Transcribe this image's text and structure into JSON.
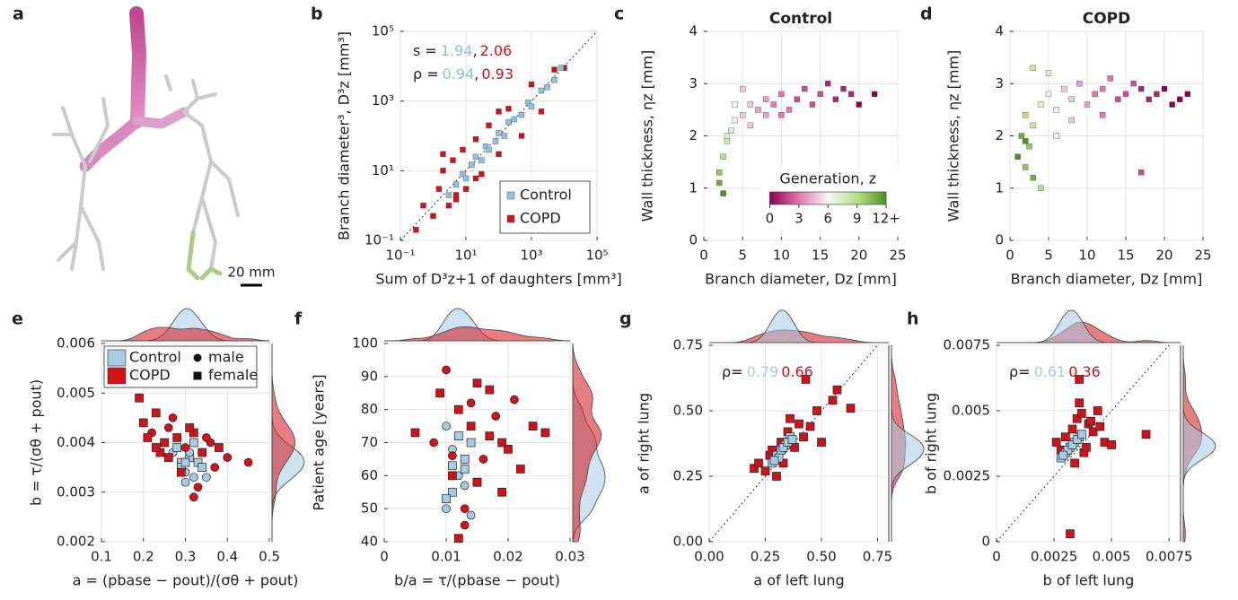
{
  "chart_data": [
    {
      "panel": "a",
      "type": "image",
      "scale_label": "20 mm"
    },
    {
      "panel": "b",
      "type": "scatter",
      "log": true,
      "grid": true,
      "diagonal": true,
      "legend": "lower right",
      "xlabel": "Sum of D³z+1 of daughters [mm³]",
      "ylabel": "Branch diameter³, D³z [mm³]",
      "xlim": [
        0.1,
        100000
      ],
      "ylim": [
        0.1,
        100000
      ],
      "xticks": [
        {
          "value": 0.1,
          "label": "10⁻¹"
        },
        {
          "value": 10,
          "label": "10¹"
        },
        {
          "value": 1000,
          "label": "10³"
        },
        {
          "value": 100000,
          "label": "10⁵"
        }
      ],
      "yticks": [
        {
          "value": 0.1,
          "label": "10⁻¹"
        },
        {
          "value": 10,
          "label": "10¹"
        },
        {
          "value": 1000,
          "label": "10³"
        },
        {
          "value": 100000,
          "label": "10⁵"
        }
      ],
      "stat_separator": ",",
      "stats": [
        {
          "label": "s =",
          "values": [
            "1.94",
            "2.06"
          ]
        },
        {
          "label": "ρ =",
          "values": [
            "0.94",
            "0.93"
          ]
        }
      ],
      "series": [
        {
          "name": "COPD",
          "color": "#d0121b",
          "x": [
            0.5,
            1,
            1.5,
            2,
            3,
            4,
            5,
            8,
            10,
            20,
            30,
            50,
            100,
            200,
            500,
            1000,
            2000,
            5000,
            10000,
            0.3,
            2,
            5,
            20,
            100
          ],
          "values": [
            1,
            0.5,
            3,
            10,
            1,
            20,
            2,
            40,
            3,
            80,
            8,
            200,
            30,
            600,
            100,
            3000,
            500,
            8000,
            9000,
            0.2,
            30,
            1.5,
            6,
            500
          ]
        },
        {
          "name": "Control",
          "color": "#8fc0de",
          "x": [
            3,
            5,
            8,
            10,
            15,
            20,
            30,
            40,
            50,
            80,
            100,
            150,
            200,
            300,
            500,
            800,
            1000,
            2000,
            3000,
            5000,
            8000
          ],
          "values": [
            2,
            4,
            8,
            6,
            15,
            25,
            20,
            50,
            40,
            70,
            120,
            100,
            250,
            300,
            400,
            900,
            700,
            2000,
            2500,
            4000,
            9000
          ]
        }
      ]
    },
    {
      "panel": "c",
      "type": "scatter",
      "title": "Control",
      "grid": true,
      "xlabel": "Branch diameter, Dz [mm]",
      "ylabel": "Wall thickness, ηz [mm]",
      "xlim": [
        0,
        25
      ],
      "ylim": [
        0,
        4
      ],
      "xticks": [
        0,
        5,
        10,
        15,
        20,
        25
      ],
      "yticks": [
        0,
        1,
        2,
        3,
        4
      ],
      "colorbar": {
        "title": "Generation, z",
        "lim": [
          0,
          12
        ],
        "ticks": [
          0,
          3,
          6,
          9,
          {
            "value": 12,
            "label": "12+"
          }
        ]
      },
      "series": [
        {
          "x": [
            2,
            2.5,
            3,
            2,
            3.5,
            4,
            5,
            6,
            7,
            8,
            9,
            10,
            11,
            12,
            13,
            14,
            15,
            16,
            17,
            18,
            19,
            20,
            22,
            3,
            4,
            6,
            8,
            2.5,
            5,
            10
          ],
          "values": [
            1.3,
            1.6,
            1.9,
            1.1,
            2.1,
            2.3,
            2.4,
            2.6,
            2.5,
            2.7,
            2.6,
            2.8,
            2.5,
            2.7,
            2.9,
            2.6,
            2.8,
            3.0,
            2.7,
            2.9,
            2.8,
            2.6,
            2.8,
            2.0,
            2.6,
            2.2,
            2.4,
            0.9,
            2.9,
            2.4
          ],
          "generation": [
            10,
            9,
            8,
            11,
            7,
            6,
            5,
            5,
            4,
            4,
            3,
            3,
            3,
            2,
            2,
            2,
            2,
            1,
            1,
            1,
            1,
            0,
            0,
            7,
            6,
            5,
            4,
            12,
            5,
            3
          ]
        }
      ]
    },
    {
      "panel": "d",
      "type": "scatter",
      "title": "COPD",
      "grid": true,
      "xlabel": "Branch diameter, Dz [mm]",
      "ylabel": "Wall thickness, ηz [mm]",
      "xlim": [
        0,
        25
      ],
      "ylim": [
        0,
        4
      ],
      "xticks": [
        0,
        5,
        10,
        15,
        20,
        25
      ],
      "yticks": [
        0,
        1,
        2,
        3,
        4
      ],
      "series": [
        {
          "x": [
            1,
            1.5,
            2,
            2,
            2.5,
            3,
            3,
            4,
            5,
            6,
            7,
            8,
            9,
            10,
            11,
            12,
            13,
            14,
            15,
            16,
            17,
            18,
            19,
            20,
            21,
            22,
            23,
            3,
            5,
            8,
            12,
            17,
            4,
            6,
            2
          ],
          "values": [
            1.6,
            2.0,
            1.4,
            2.4,
            1.8,
            2.2,
            1.2,
            2.6,
            2.8,
            2.5,
            2.9,
            2.7,
            3.0,
            2.6,
            2.8,
            2.9,
            3.1,
            2.7,
            2.8,
            3.0,
            2.9,
            2.7,
            2.8,
            2.9,
            2.6,
            2.7,
            2.8,
            3.3,
            3.2,
            2.3,
            2.4,
            1.3,
            1.0,
            2.0,
            1.9
          ],
          "generation": [
            12,
            11,
            10,
            9,
            10,
            8,
            11,
            7,
            6,
            6,
            5,
            5,
            4,
            4,
            3,
            3,
            3,
            2,
            2,
            2,
            1,
            1,
            1,
            0,
            0,
            0,
            0,
            8,
            7,
            5,
            3,
            2,
            9,
            6,
            12
          ]
        }
      ]
    },
    {
      "panel": "e",
      "type": "scatter",
      "grid": true,
      "marginals": true,
      "legend": "upper left",
      "xlabel": "a = (pbase − pout)/(σθ + pout)",
      "ylabel": "b = τ/(σθ + pout)",
      "xlim": [
        0.1,
        0.5
      ],
      "ylim": [
        0.002,
        0.006
      ],
      "xticks": [
        0.1,
        0.2,
        0.3,
        0.4,
        0.5
      ],
      "yticks": [
        0.002,
        0.003,
        0.004,
        0.005,
        0.006
      ],
      "marker_legend": [
        "male",
        "female"
      ],
      "series": [
        {
          "name": "Control",
          "color": "#a6cbe3",
          "x": [
            0.27,
            0.29,
            0.3,
            0.31,
            0.32,
            0.33,
            0.28,
            0.3,
            0.34,
            0.31,
            0.29,
            0.35,
            0.32,
            0.26,
            0.3
          ],
          "values": [
            0.0038,
            0.0036,
            0.0034,
            0.0037,
            0.0033,
            0.0036,
            0.0039,
            0.0032,
            0.0035,
            0.0038,
            0.0035,
            0.0033,
            0.004,
            0.0037,
            0.0036
          ],
          "marker": [
            "circle",
            "square",
            "circle",
            "square",
            "circle",
            "square",
            "square",
            "circle",
            "square",
            "circle",
            "square",
            "circle",
            "square",
            "circle",
            "square"
          ]
        },
        {
          "name": "COPD",
          "color": "#d0121b",
          "x": [
            0.19,
            0.2,
            0.22,
            0.23,
            0.25,
            0.26,
            0.28,
            0.3,
            0.32,
            0.34,
            0.36,
            0.38,
            0.4,
            0.45,
            0.32,
            0.24,
            0.27,
            0.29,
            0.33,
            0.21,
            0.37,
            0.31,
            0.26,
            0.35,
            0.23
          ],
          "values": [
            0.0049,
            0.0044,
            0.0042,
            0.0046,
            0.004,
            0.0043,
            0.0041,
            0.0039,
            0.0029,
            0.0038,
            0.004,
            0.0039,
            0.0037,
            0.0036,
            0.0042,
            0.0038,
            0.0045,
            0.0034,
            0.0031,
            0.0041,
            0.0035,
            0.0043,
            0.0037,
            0.0041,
            0.0039
          ],
          "marker": [
            "square",
            "square",
            "circle",
            "square",
            "square",
            "circle",
            "square",
            "circle",
            "circle",
            "square",
            "circle",
            "square",
            "circle",
            "circle",
            "square",
            "square",
            "circle",
            "square",
            "circle",
            "square",
            "circle",
            "square",
            "square",
            "circle",
            "square"
          ]
        }
      ]
    },
    {
      "panel": "f",
      "type": "scatter",
      "grid": true,
      "marginals": true,
      "xlabel": "b/a = τ/(pbase − pout)",
      "ylabel": "Patient age [years]",
      "xlim": [
        0,
        0.03
      ],
      "ylim": [
        40,
        100
      ],
      "xticks": [
        0,
        0.01,
        0.02,
        0.03
      ],
      "yticks": [
        40,
        50,
        60,
        70,
        80,
        90,
        100
      ],
      "series": [
        {
          "name": "Control",
          "color": "#a6cbe3",
          "x": [
            0.01,
            0.011,
            0.012,
            0.013,
            0.014,
            0.01,
            0.012,
            0.011,
            0.013,
            0.015,
            0.012,
            0.01,
            0.014,
            0.011,
            0.013
          ],
          "values": [
            50,
            55,
            60,
            65,
            70,
            75,
            72,
            68,
            62,
            58,
            80,
            53,
            48,
            63,
            57
          ],
          "marker": [
            "circle",
            "square",
            "circle",
            "square",
            "square",
            "circle",
            "square",
            "circle",
            "square",
            "square",
            "circle",
            "square",
            "circle",
            "square",
            "circle"
          ]
        },
        {
          "name": "COPD",
          "color": "#d0121b",
          "x": [
            0.008,
            0.009,
            0.01,
            0.011,
            0.012,
            0.013,
            0.014,
            0.015,
            0.016,
            0.017,
            0.018,
            0.019,
            0.02,
            0.021,
            0.022,
            0.024,
            0.026,
            0.005,
            0.012,
            0.013,
            0.015,
            0.011,
            0.017,
            0.014,
            0.019
          ],
          "values": [
            70,
            85,
            92,
            60,
            80,
            45,
            75,
            88,
            65,
            72,
            78,
            55,
            68,
            83,
            62,
            75,
            73,
            73,
            41,
            50,
            58,
            66,
            86,
            82,
            70
          ],
          "marker": [
            "circle",
            "square",
            "circle",
            "square",
            "square",
            "circle",
            "square",
            "square",
            "circle",
            "square",
            "circle",
            "square",
            "square",
            "circle",
            "square",
            "square",
            "square",
            "square",
            "square",
            "circle",
            "square",
            "circle",
            "square",
            "circle",
            "square"
          ]
        }
      ]
    },
    {
      "panel": "g",
      "type": "scatter",
      "grid": true,
      "marginals": true,
      "diagonal": true,
      "xlabel": "a of left lung",
      "ylabel": "a of right lung",
      "xlim": [
        0,
        0.8
      ],
      "ylim": [
        0,
        0.75
      ],
      "xticks": [
        {
          "value": 0,
          "label": "0.00"
        },
        0.25,
        {
          "value": 0.5,
          "label": "0.50"
        },
        0.75
      ],
      "yticks": [
        {
          "value": 0,
          "label": "0.00"
        },
        0.25,
        {
          "value": 0.5,
          "label": "0.50"
        },
        0.75
      ],
      "stats": [
        {
          "label": "ρ=",
          "values": [
            "0.79",
            "0.66"
          ]
        }
      ],
      "series": [
        {
          "name": "COPD",
          "color": "#d0121b",
          "x": [
            0.2,
            0.22,
            0.25,
            0.27,
            0.3,
            0.32,
            0.35,
            0.38,
            0.4,
            0.42,
            0.45,
            0.48,
            0.5,
            0.55,
            0.57,
            0.63,
            0.33,
            0.28,
            0.36,
            0.43
          ],
          "values": [
            0.28,
            0.3,
            0.27,
            0.33,
            0.25,
            0.38,
            0.42,
            0.36,
            0.45,
            0.4,
            0.44,
            0.5,
            0.38,
            0.54,
            0.58,
            0.51,
            0.3,
            0.35,
            0.47,
            0.62
          ]
        },
        {
          "name": "Control",
          "color": "#a6cbe3",
          "x": [
            0.28,
            0.3,
            0.32,
            0.34,
            0.36,
            0.31,
            0.33,
            0.35,
            0.29,
            0.37
          ],
          "values": [
            0.3,
            0.33,
            0.35,
            0.37,
            0.4,
            0.32,
            0.36,
            0.38,
            0.31,
            0.39
          ]
        }
      ]
    },
    {
      "panel": "h",
      "type": "scatter",
      "grid": true,
      "marginals": true,
      "diagonal": true,
      "xlabel": "b of left lung",
      "ylabel": "b of right lung",
      "xlim": [
        0,
        0.008
      ],
      "ylim": [
        0,
        0.0075
      ],
      "xticks": [
        0,
        0.0025,
        0.005,
        0.0075
      ],
      "yticks": [
        0,
        0.0025,
        0.005,
        0.0075
      ],
      "stats": [
        {
          "label": "ρ=",
          "values": [
            "0.61",
            "0.36"
          ]
        }
      ],
      "series": [
        {
          "name": "COPD",
          "color": "#d0121b",
          "x": [
            0.0026,
            0.0028,
            0.003,
            0.0033,
            0.0035,
            0.0037,
            0.004,
            0.0042,
            0.0045,
            0.0047,
            0.005,
            0.0065,
            0.0036,
            0.0032,
            0.0038,
            0.0041,
            0.0034,
            0.0044,
            0.0039,
            0.0036
          ],
          "values": [
            0.0038,
            0.0035,
            0.004,
            0.0043,
            0.0047,
            0.0049,
            0.0045,
            0.0042,
            0.0044,
            0.0038,
            0.0037,
            0.0041,
            0.0062,
            0.0003,
            0.0034,
            0.0046,
            0.003,
            0.005,
            0.0036,
            0.0053
          ]
        },
        {
          "name": "Control",
          "color": "#a6cbe3",
          "x": [
            0.0028,
            0.003,
            0.0032,
            0.0034,
            0.0036,
            0.0031,
            0.0033,
            0.0035,
            0.0029,
            0.0037
          ],
          "values": [
            0.0032,
            0.0034,
            0.0036,
            0.0038,
            0.004,
            0.0035,
            0.0037,
            0.0039,
            0.0033,
            0.0041
          ]
        }
      ]
    }
  ]
}
